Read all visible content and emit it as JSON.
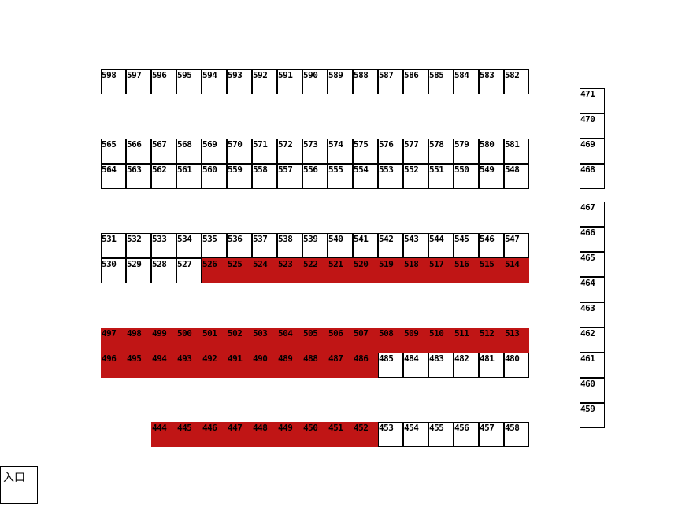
{
  "colors": {
    "occupied": "#c01515",
    "available": "#ffffff"
  },
  "entrance": {
    "label": "入口"
  },
  "rows": [
    {
      "id": "r1",
      "booths": [
        "598",
        "597",
        "596",
        "595",
        "594",
        "593",
        "592",
        "591",
        "590",
        "589",
        "588",
        "587",
        "586",
        "585",
        "584",
        "583",
        "582"
      ],
      "occupied": []
    },
    {
      "id": "r2",
      "booths": [
        "565",
        "566",
        "567",
        "568",
        "569",
        "570",
        "571",
        "572",
        "573",
        "574",
        "575",
        "576",
        "577",
        "578",
        "579",
        "580",
        "581"
      ],
      "occupied": []
    },
    {
      "id": "r3",
      "booths": [
        "564",
        "563",
        "562",
        "561",
        "560",
        "559",
        "558",
        "557",
        "556",
        "555",
        "554",
        "553",
        "552",
        "551",
        "550",
        "549",
        "548"
      ],
      "occupied": []
    },
    {
      "id": "r4",
      "booths": [
        "531",
        "532",
        "533",
        "534",
        "535",
        "536",
        "537",
        "538",
        "539",
        "540",
        "541",
        "542",
        "543",
        "544",
        "545",
        "546",
        "547"
      ],
      "occupied": []
    },
    {
      "id": "r5",
      "booths": [
        "530",
        "529",
        "528",
        "527",
        "526",
        "525",
        "524",
        "523",
        "522",
        "521",
        "520",
        "519",
        "518",
        "517",
        "516",
        "515",
        "514"
      ],
      "occupied": [
        "526",
        "525",
        "524",
        "523",
        "522",
        "521",
        "520",
        "519",
        "518",
        "517",
        "516",
        "515",
        "514"
      ]
    },
    {
      "id": "r6",
      "booths": [
        "497",
        "498",
        "499",
        "500",
        "501",
        "502",
        "503",
        "504",
        "505",
        "506",
        "507",
        "508",
        "509",
        "510",
        "511",
        "512",
        "513"
      ],
      "occupied": [
        "497",
        "498",
        "499",
        "500",
        "501",
        "502",
        "503",
        "504",
        "505",
        "506",
        "507",
        "508",
        "509",
        "510",
        "511",
        "512",
        "513"
      ]
    },
    {
      "id": "r7",
      "booths": [
        "496",
        "495",
        "494",
        "493",
        "492",
        "491",
        "490",
        "489",
        "488",
        "487",
        "486",
        "485",
        "484",
        "483",
        "482",
        "481",
        "480"
      ],
      "occupied": [
        "496",
        "495",
        "494",
        "493",
        "492",
        "491",
        "490",
        "489",
        "488",
        "487",
        "486"
      ]
    },
    {
      "id": "r8",
      "booths": [
        "444",
        "445",
        "446",
        "447",
        "448",
        "449",
        "450",
        "451",
        "452",
        "453",
        "454",
        "455",
        "456",
        "457",
        "458"
      ],
      "occupied": [
        "444",
        "445",
        "446",
        "447",
        "448",
        "449",
        "450",
        "451",
        "452"
      ]
    },
    {
      "id": "c1",
      "booths": [
        "471",
        "470",
        "469",
        "468"
      ],
      "occupied": []
    },
    {
      "id": "c2",
      "booths": [
        "467",
        "466",
        "465",
        "464",
        "463",
        "462",
        "461",
        "460",
        "459"
      ],
      "occupied": []
    }
  ]
}
